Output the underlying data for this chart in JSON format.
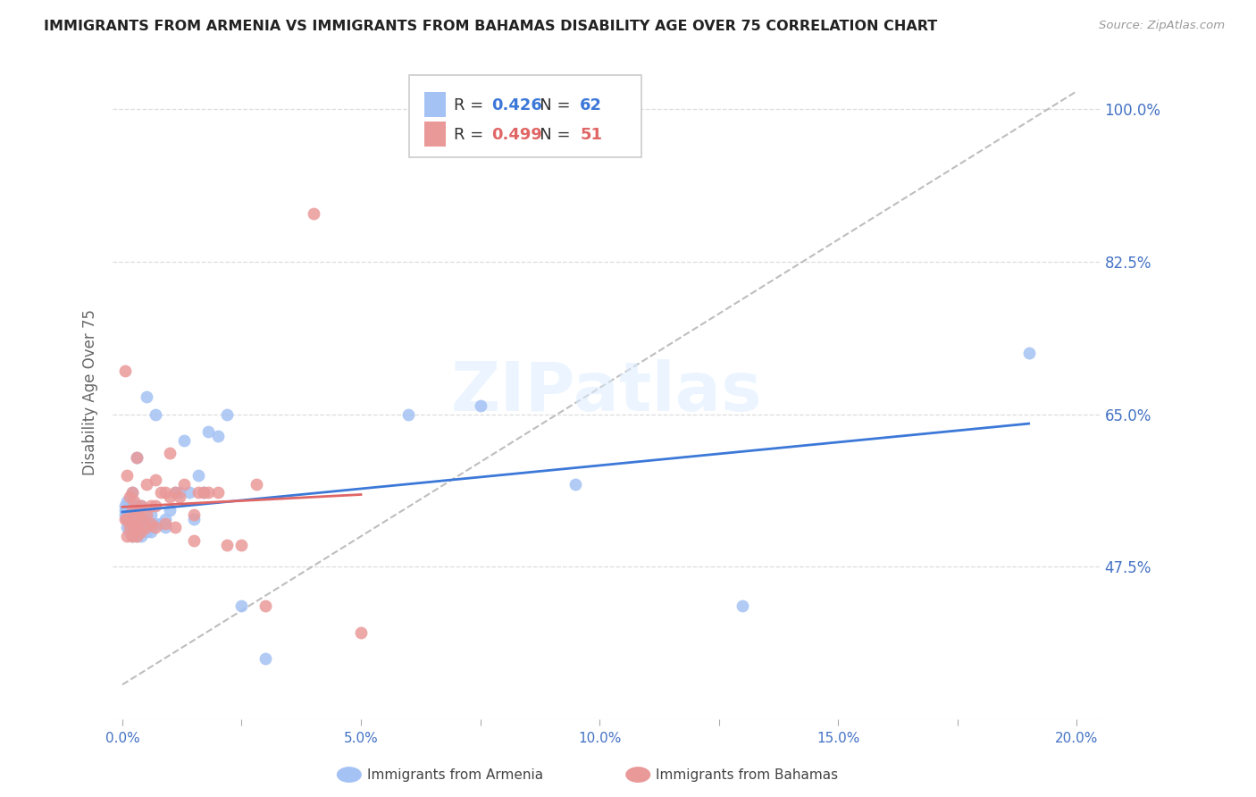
{
  "title": "IMMIGRANTS FROM ARMENIA VS IMMIGRANTS FROM BAHAMAS DISABILITY AGE OVER 75 CORRELATION CHART",
  "source": "Source: ZipAtlas.com",
  "xlabel_ticks": [
    "0.0%",
    "",
    "5.0%",
    "",
    "10.0%",
    "",
    "15.0%",
    "",
    "20.0%"
  ],
  "xlabel_vals": [
    0.0,
    0.025,
    0.05,
    0.075,
    0.1,
    0.125,
    0.15,
    0.175,
    0.2
  ],
  "ylabel_ticks": [
    "100.0%",
    "82.5%",
    "65.0%",
    "47.5%"
  ],
  "ylabel_vals": [
    1.0,
    0.825,
    0.65,
    0.475
  ],
  "ylabel_label": "Disability Age Over 75",
  "xlim": [
    -0.002,
    0.205
  ],
  "ylim": [
    0.3,
    1.05
  ],
  "armenia_R": 0.426,
  "armenia_N": 62,
  "bahamas_R": 0.499,
  "bahamas_N": 51,
  "armenia_color": "#a4c2f4",
  "bahamas_color": "#ea9999",
  "armenia_line_color": "#3c78d8",
  "bahamas_line_color": "#e06666",
  "ref_line_color": "#b7b7b7",
  "background_color": "#ffffff",
  "watermark": "ZIPatlas",
  "armenia_x": [
    0.0005,
    0.0005,
    0.0005,
    0.001,
    0.001,
    0.001,
    0.001,
    0.001,
    0.0015,
    0.0015,
    0.0015,
    0.0015,
    0.002,
    0.002,
    0.002,
    0.002,
    0.002,
    0.002,
    0.0025,
    0.0025,
    0.0025,
    0.003,
    0.003,
    0.003,
    0.003,
    0.003,
    0.003,
    0.003,
    0.0035,
    0.0035,
    0.004,
    0.004,
    0.004,
    0.004,
    0.005,
    0.005,
    0.005,
    0.006,
    0.006,
    0.007,
    0.007,
    0.008,
    0.009,
    0.009,
    0.01,
    0.011,
    0.012,
    0.013,
    0.014,
    0.015,
    0.016,
    0.017,
    0.018,
    0.02,
    0.022,
    0.025,
    0.03,
    0.06,
    0.075,
    0.095,
    0.13,
    0.19
  ],
  "armenia_y": [
    0.535,
    0.54,
    0.545,
    0.52,
    0.53,
    0.535,
    0.54,
    0.55,
    0.515,
    0.525,
    0.535,
    0.545,
    0.51,
    0.515,
    0.52,
    0.53,
    0.54,
    0.56,
    0.515,
    0.53,
    0.545,
    0.51,
    0.515,
    0.52,
    0.525,
    0.535,
    0.545,
    0.6,
    0.515,
    0.53,
    0.51,
    0.52,
    0.53,
    0.545,
    0.515,
    0.53,
    0.67,
    0.515,
    0.535,
    0.525,
    0.65,
    0.525,
    0.52,
    0.53,
    0.54,
    0.56,
    0.56,
    0.62,
    0.56,
    0.53,
    0.58,
    0.56,
    0.63,
    0.625,
    0.65,
    0.43,
    0.37,
    0.65,
    0.66,
    0.57,
    0.43,
    0.72
  ],
  "bahamas_x": [
    0.0005,
    0.0005,
    0.001,
    0.001,
    0.001,
    0.0015,
    0.0015,
    0.002,
    0.002,
    0.002,
    0.002,
    0.0025,
    0.0025,
    0.003,
    0.003,
    0.003,
    0.003,
    0.003,
    0.0035,
    0.004,
    0.004,
    0.004,
    0.005,
    0.005,
    0.005,
    0.006,
    0.006,
    0.007,
    0.007,
    0.007,
    0.008,
    0.009,
    0.009,
    0.01,
    0.01,
    0.011,
    0.011,
    0.012,
    0.013,
    0.015,
    0.015,
    0.016,
    0.017,
    0.018,
    0.02,
    0.022,
    0.025,
    0.028,
    0.03,
    0.04,
    0.05
  ],
  "bahamas_y": [
    0.53,
    0.7,
    0.51,
    0.53,
    0.58,
    0.52,
    0.555,
    0.51,
    0.525,
    0.54,
    0.56,
    0.52,
    0.55,
    0.51,
    0.52,
    0.53,
    0.54,
    0.6,
    0.54,
    0.515,
    0.53,
    0.545,
    0.52,
    0.535,
    0.57,
    0.525,
    0.545,
    0.52,
    0.545,
    0.575,
    0.56,
    0.525,
    0.56,
    0.555,
    0.605,
    0.52,
    0.56,
    0.555,
    0.57,
    0.505,
    0.535,
    0.56,
    0.56,
    0.56,
    0.56,
    0.5,
    0.5,
    0.57,
    0.43,
    0.88,
    0.4
  ]
}
